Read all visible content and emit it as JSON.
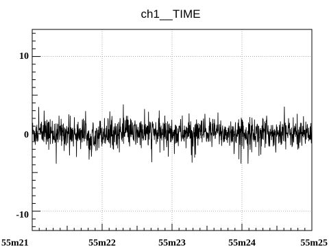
{
  "chart_data": {
    "type": "line",
    "title": "ch1__TIME",
    "xlabel": "",
    "ylabel": "",
    "x_tick_labels": [
      "55m21",
      "55m22",
      "55m23",
      "55m24",
      "55m25"
    ],
    "x_range_minutes": [
      21,
      25
    ],
    "ylim": [
      -12.5,
      13.5
    ],
    "y_ticks": [
      -10,
      0,
      10
    ],
    "y_tick_labels": [
      "-10",
      "0",
      "10"
    ],
    "grid": true,
    "legend": "none",
    "series": [
      {
        "color": "#000000",
        "center": 0,
        "typical_band": [
          -1.8,
          2.0
        ],
        "peak_range": [
          -4.3,
          3.8
        ],
        "samples": 1200
      }
    ]
  }
}
